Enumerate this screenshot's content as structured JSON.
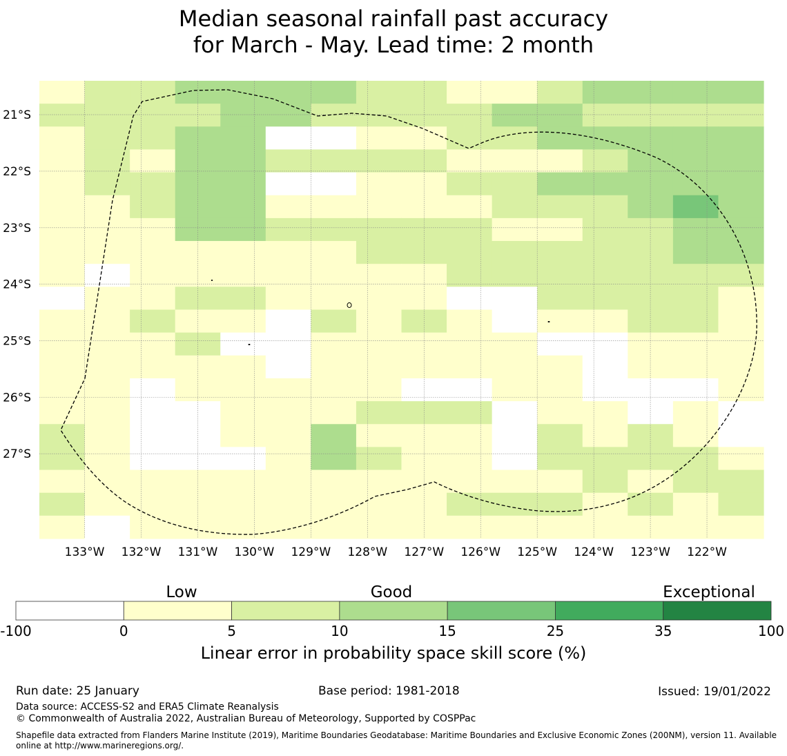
{
  "title": {
    "line1": "Median seasonal rainfall past accuracy",
    "line2": "for March - May. Lead time: 2 month"
  },
  "chart_data": {
    "type": "heatmap",
    "variable": "Linear error in probability space skill score (%)",
    "lon_tick_labels": [
      "133°W",
      "132°W",
      "131°W",
      "130°W",
      "129°W",
      "128°W",
      "127°W",
      "126°W",
      "125°W",
      "124°W",
      "123°W",
      "122°W"
    ],
    "lat_tick_labels": [
      "21°S",
      "22°S",
      "23°S",
      "24°S",
      "25°S",
      "26°S",
      "27°S"
    ],
    "lon_range": [
      -133.8,
      -121.0
    ],
    "lat_range": [
      -28.5,
      -20.4
    ],
    "grid_cell_deg": 0.55,
    "category_bounds": [
      -100,
      0,
      5,
      10,
      15,
      25,
      35,
      100
    ],
    "category_colors": [
      "#ffffff",
      "#ffffcc",
      "#d9f0a3",
      "#addd8e",
      "#78c679",
      "#41ab5d",
      "#238443"
    ],
    "cell_category_rows_north_to_south": [
      "1223333221123333",
      "2222332222332222",
      "1223300112233333",
      "1213322221112333",
      "1223300112233333",
      "1123311111222343",
      "1113322222112233",
      "1111111222222233",
      "1011111112222222",
      "0112211110022221",
      "1121102121011221",
      "1112001111100111",
      "1111101111110111",
      "1101111100110001",
      "1100111222011010",
      "2100113111021210",
      "2100013211022221",
      "1111111111112122",
      "2111111112221212",
      "1011111111111111"
    ],
    "legend": {
      "categories": [
        "Low",
        "Good",
        "Exceptional"
      ],
      "ticks": [
        "-100",
        "0",
        "5",
        "10",
        "15",
        "25",
        "35",
        "100"
      ]
    }
  },
  "footer": {
    "run_date": "Run date: 25 January",
    "base_period": "Base period: 1981-2018",
    "issued": "Issued: 19/01/2022",
    "data_source": "Data source: ACCESS-S2 and ERA5 Climate Reanalysis",
    "copyright": "© Commonwealth of Australia 2022, Australian Bureau of Meteorology, Supported by COSPPac",
    "shapefile": "Shapefile data extracted from Flanders Marine Institute (2019), Maritime Boundaries Geodatabase: Maritime Boundaries and Exclusive Economic Zones (200NM), version 11. Available online at http://www.marineregions.org/."
  }
}
